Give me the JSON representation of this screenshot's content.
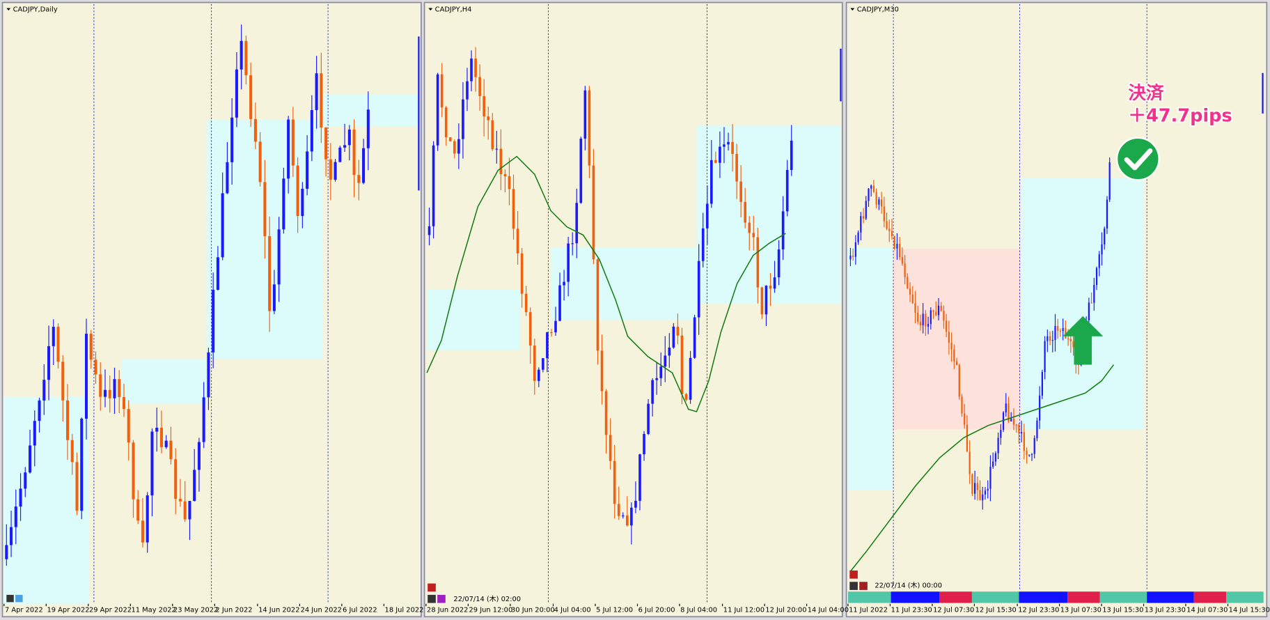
{
  "panels": [
    {
      "title": "CADJPY,Daily",
      "x_labels": [
        "7 Apr 2022",
        "19 Apr 2022",
        "29 Apr 2022",
        "11 May 2022",
        "23 May 2022",
        "2 Jun 2022",
        "14 Jun 2022",
        "24 Jun 2022",
        "6 Jul 2022",
        "18 Jul 2022"
      ]
    },
    {
      "title": "CADJPY,H4",
      "x_labels": [
        "28 Jun 2022",
        "29 Jun 12:00",
        "30 Jun 20:00",
        "4 Jul 04:00",
        "5 Jul 12:00",
        "6 Jul 20:00",
        "8 Jul 04:00",
        "11 Jul 12:00",
        "12 Jul 20:00",
        "14 Jul 04:00"
      ],
      "timestamp": "22/07/14 (木) 02:00"
    },
    {
      "title": "CADJPY,M30",
      "x_labels": [
        "11 Jul 2022",
        "11 Jul 23:30",
        "12 Jul 07:30",
        "12 Jul 15:30",
        "12 Jul 23:30",
        "13 Jul 07:30",
        "13 Jul 15:30",
        "13 Jul 23:30",
        "14 Jul 07:30",
        "14 Jul 15:30"
      ],
      "timestamp": "22/07/14 (木) 00:00"
    }
  ],
  "annotation": {
    "action": "決済",
    "result": "＋47.7pips"
  }
}
